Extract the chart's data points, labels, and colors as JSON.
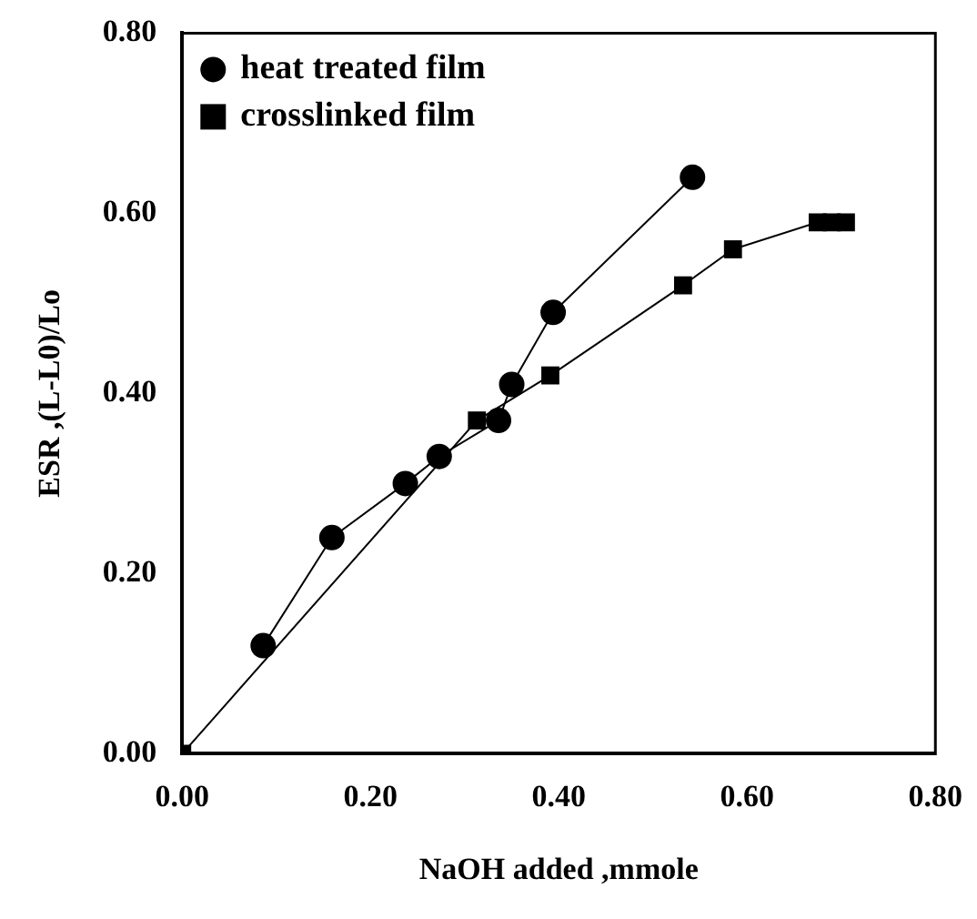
{
  "chart_data": {
    "type": "line",
    "xlabel": "NaOH added ,mmole",
    "ylabel": "ESR ,(L-L0)/Lo",
    "xlim": [
      0,
      0.8
    ],
    "xticks": [
      {
        "value": 0,
        "label": "0.00"
      },
      {
        "value": 0.2,
        "label": "0.20"
      },
      {
        "value": 0.4,
        "label": "0.40"
      },
      {
        "value": 0.6,
        "label": "0.60"
      },
      {
        "value": 0.8,
        "label": "0.80"
      }
    ],
    "ylim": [
      0,
      0.8
    ],
    "yticks": [
      {
        "value": 0,
        "label": "0.00"
      },
      {
        "value": 0.2,
        "label": "0.20"
      },
      {
        "value": 0.4,
        "label": "0.40"
      },
      {
        "value": 0.6,
        "label": "0.60"
      },
      {
        "value": 0.8,
        "label": "0.80"
      }
    ],
    "grid": false,
    "legend": "top left",
    "line_style": "solid",
    "series": [
      {
        "name": "heat treated film",
        "color": "#000000",
        "marker": "circle",
        "x": [
          0.086,
          0.159,
          0.237,
          0.273,
          0.336,
          0.35,
          0.394,
          0.542
        ],
        "values": [
          0.12,
          0.24,
          0.3,
          0.33,
          0.37,
          0.41,
          0.49,
          0.64
        ]
      },
      {
        "name": "crosslinked film",
        "color": "#000000",
        "marker": "square",
        "x": [
          0,
          0.313,
          0.391,
          0.532,
          0.585,
          0.675,
          0.69,
          0.705
        ],
        "values": [
          0,
          0.37,
          0.42,
          0.52,
          0.56,
          0.59,
          0.59,
          0.59
        ]
      }
    ]
  }
}
